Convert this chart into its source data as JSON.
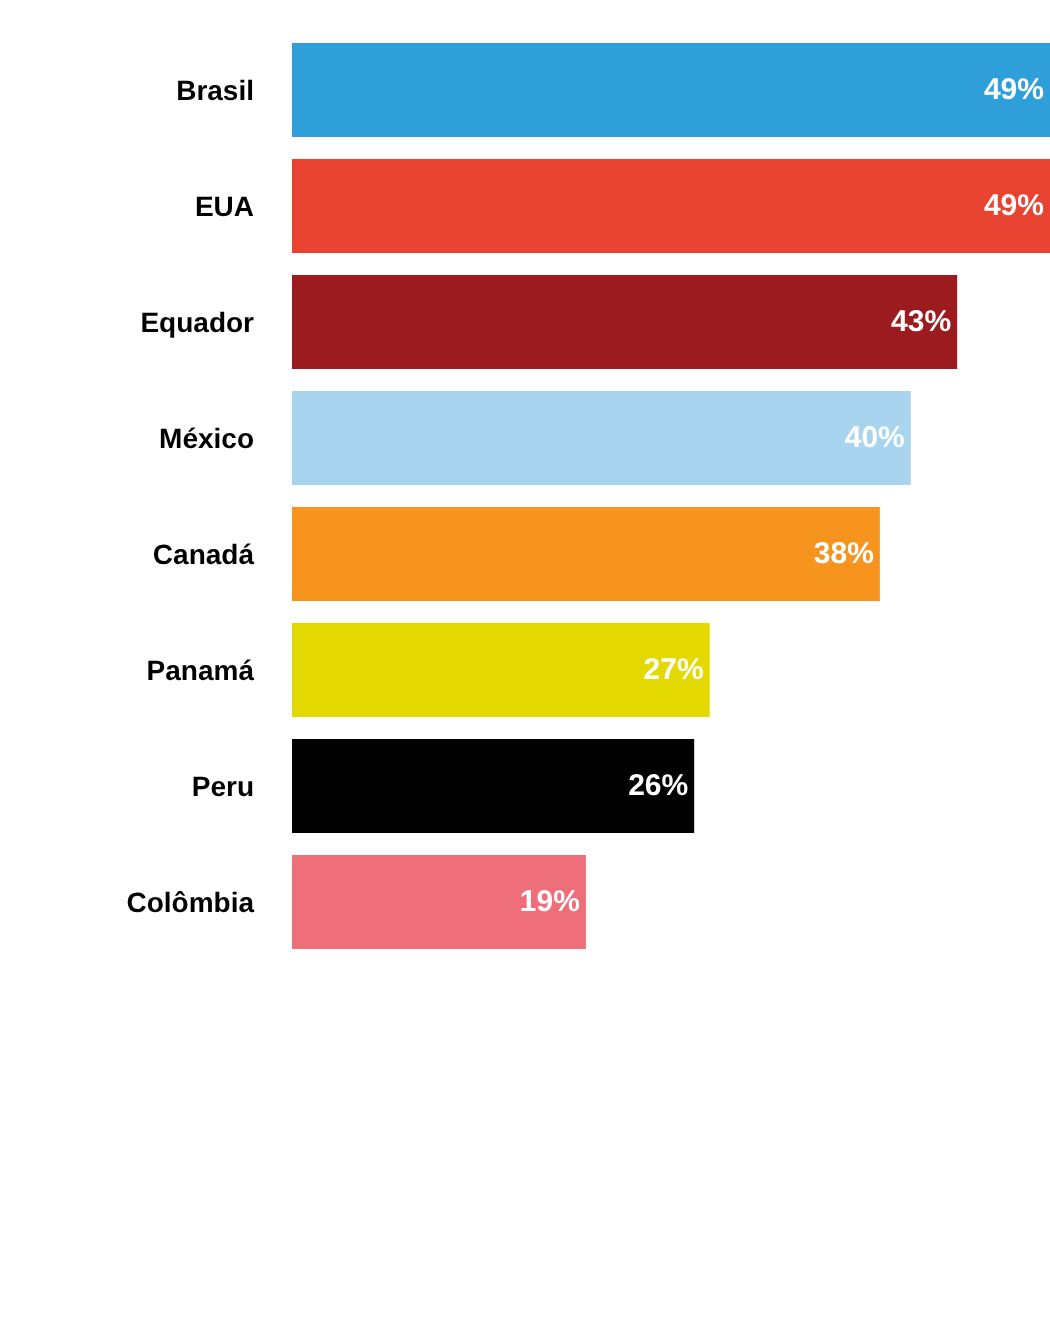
{
  "chart_data": {
    "type": "bar",
    "orientation": "horizontal",
    "data_labels": true,
    "categories": [
      "Brasil",
      "EUA",
      "Equador",
      "México",
      "Canadá",
      "Panamá",
      "Peru",
      "Colômbia"
    ],
    "values": [
      49,
      49,
      43,
      40,
      38,
      27,
      26,
      19
    ],
    "value_labels": [
      "49%",
      "49%",
      "43%",
      "40%",
      "38%",
      "27%",
      "26%",
      "19%"
    ],
    "colors": [
      "#2e9fd8",
      "#e84330",
      "#9b1b1e",
      "#a9d4ef",
      "#f7941d",
      "#e3d800",
      "#000000",
      "#ee6f7a"
    ],
    "xlim": [
      0,
      49
    ]
  }
}
